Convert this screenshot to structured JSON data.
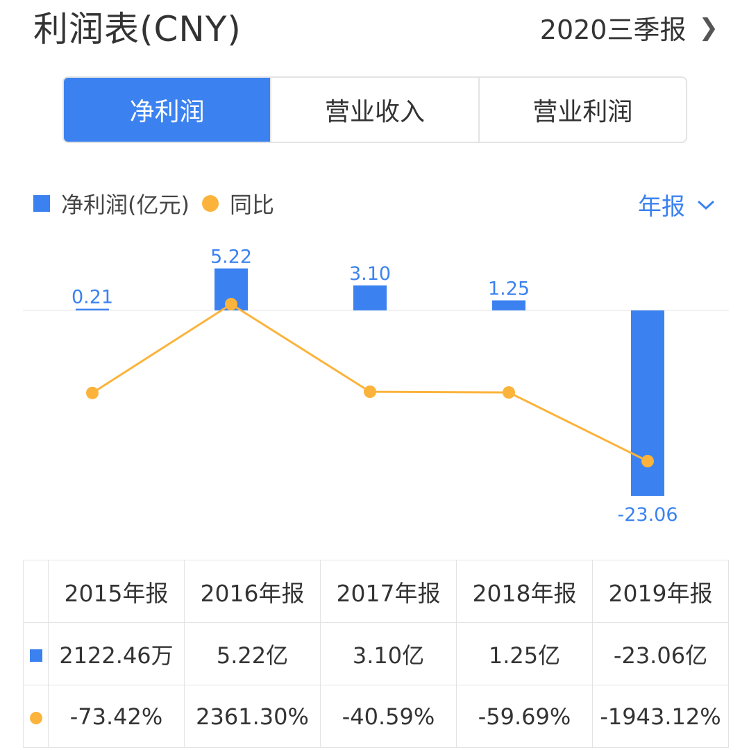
{
  "header": {
    "title": "利润表(CNY)",
    "period": "2020三季报"
  },
  "tabs": [
    {
      "label": "净利润",
      "active": true
    },
    {
      "label": "营业收入",
      "active": false
    },
    {
      "label": "营业利润",
      "active": false
    }
  ],
  "legend": {
    "bar_label": "净利润(亿元)",
    "line_label": "同比"
  },
  "period_type": "年报",
  "colors": {
    "bar": "#3b82f0",
    "line": "#fbb33b",
    "negative": "#27a86c",
    "positive": "#e64545"
  },
  "chart_data": {
    "type": "bar",
    "categories": [
      "2015年报",
      "2016年报",
      "2017年报",
      "2018年报",
      "2019年报"
    ],
    "series": [
      {
        "name": "净利润(亿元)",
        "type": "bar",
        "values": [
          0.21,
          5.22,
          3.1,
          1.25,
          -23.06
        ],
        "labels": [
          "0.21",
          "5.22",
          "3.10",
          "1.25",
          "-23.06"
        ]
      },
      {
        "name": "同比",
        "type": "line",
        "values": [
          -73.42,
          2361.3,
          -40.59,
          -59.69,
          -1943.12
        ]
      }
    ],
    "grid": false,
    "legend_position": "top-left"
  },
  "table": {
    "rows": [
      {
        "values": [
          "2122.46万",
          "5.22亿",
          "3.10亿",
          "1.25亿",
          "-23.06亿"
        ]
      },
      {
        "values": [
          "-73.42%",
          "2361.30%",
          "-40.59%",
          "-59.69%",
          "-1943.12%"
        ]
      }
    ]
  }
}
